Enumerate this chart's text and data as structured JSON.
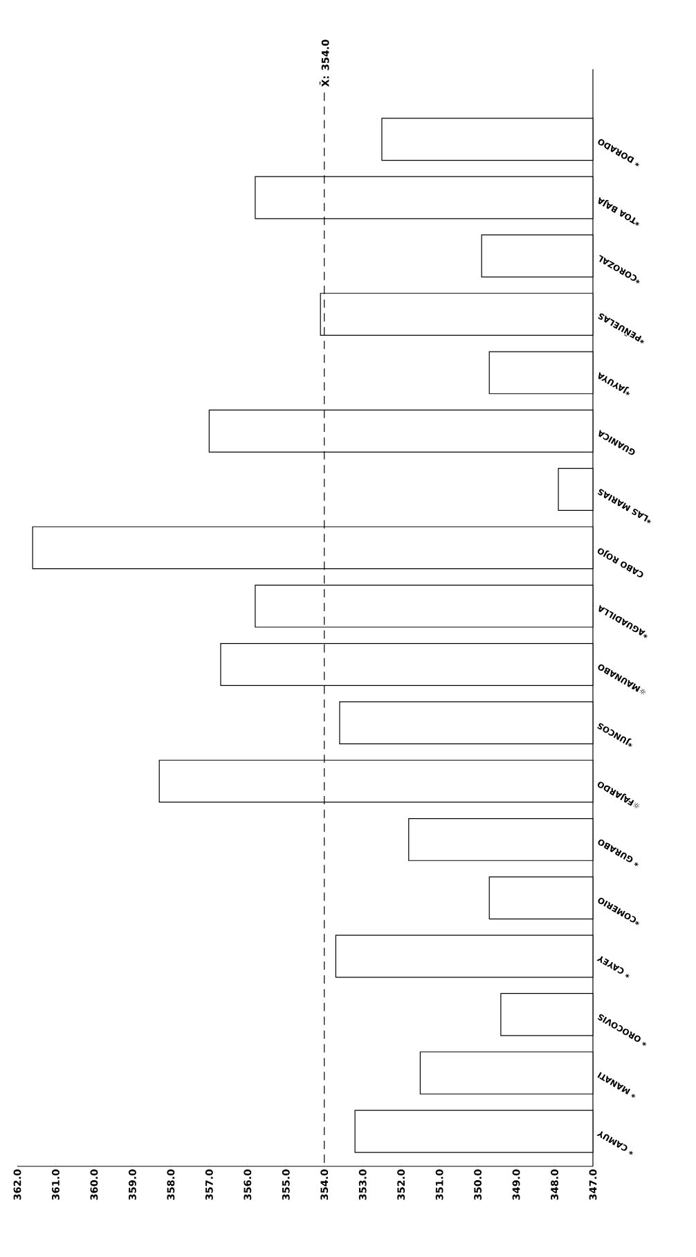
{
  "chart_data": {
    "type": "bar",
    "orientation": "horizontal",
    "categories": [
      "* DORADO",
      "*TOA BAJA",
      "*COROZAL",
      "*PEÑUELAS",
      "*JAYUYA",
      "GUANICA",
      "*LAS MARIAS",
      "CABO ROJO",
      "*AGUADILLA",
      "☼MAUNABO",
      "*JUNCOS",
      "☼FAJARDO",
      "* GURABO",
      "*COMERIO",
      "* CAYEY",
      "* OROCOVIS",
      "* MANATI",
      "* CAMUY"
    ],
    "values": [
      352.5,
      355.8,
      349.9,
      354.1,
      349.7,
      357.0,
      347.9,
      361.6,
      355.8,
      356.7,
      353.6,
      358.3,
      351.8,
      349.7,
      353.7,
      349.4,
      351.5,
      353.2
    ],
    "color": "#ffffff",
    "xlim": [
      362,
      347
    ],
    "xticks": [
      {
        "value": 362,
        "label": "362.0"
      },
      {
        "value": 361,
        "label": "361.0"
      },
      {
        "value": 360,
        "label": "360.0"
      },
      {
        "value": 359,
        "label": "359.0"
      },
      {
        "value": 358,
        "label": "358.0"
      },
      {
        "value": 357,
        "label": "357.0"
      },
      {
        "value": 356,
        "label": "356.0"
      },
      {
        "value": 355,
        "label": "355.0"
      },
      {
        "value": 354,
        "label": "354.0"
      },
      {
        "value": 353,
        "label": "353.0"
      },
      {
        "value": 352,
        "label": "352.0"
      },
      {
        "value": 351,
        "label": "351.0"
      },
      {
        "value": 350,
        "label": "350.0"
      },
      {
        "value": 349,
        "label": "349.0"
      },
      {
        "value": 348,
        "label": "348.0"
      },
      {
        "value": 347,
        "label": "347.0"
      }
    ],
    "ref_lines": [
      {
        "axis": "x",
        "value": 354,
        "label": "X̄: 354.0",
        "line_style": "dashed"
      }
    ]
  }
}
